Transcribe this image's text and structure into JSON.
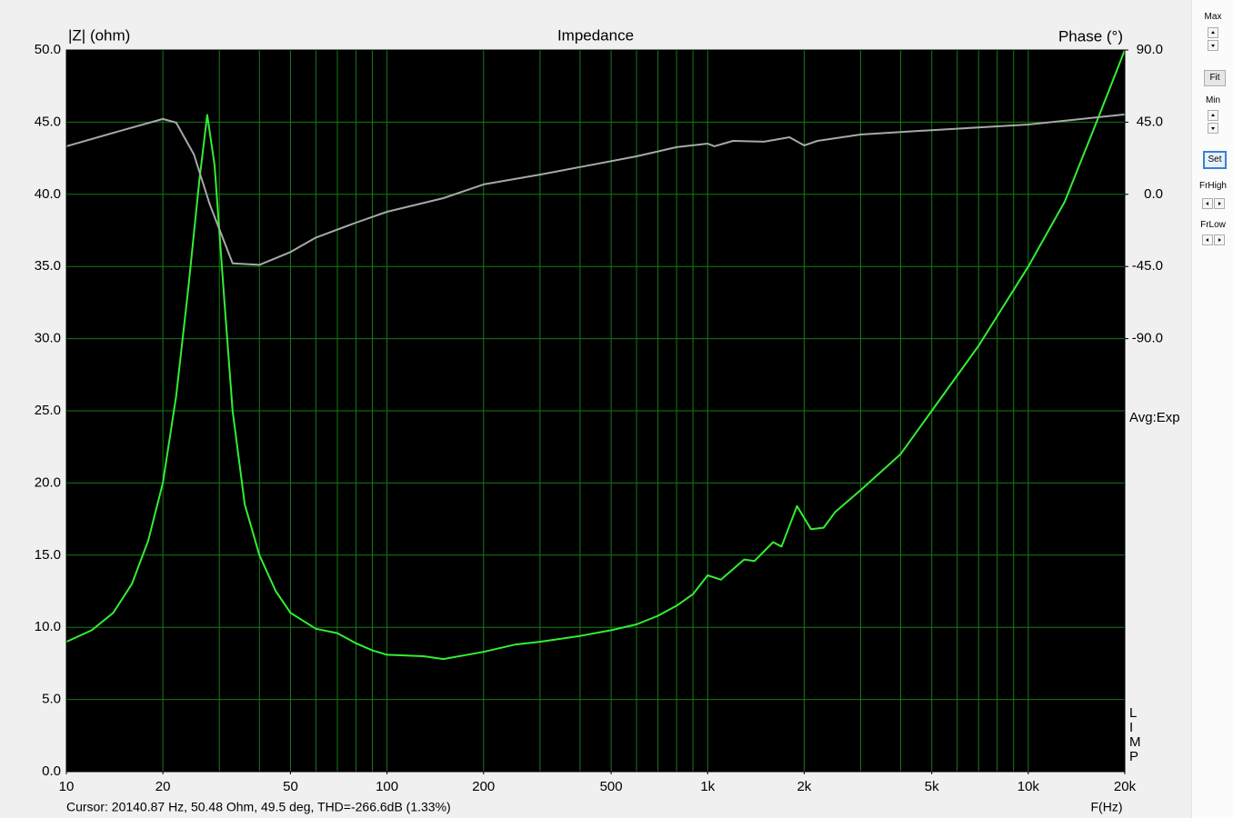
{
  "chart_data": {
    "type": "line",
    "title": "Impedance",
    "y_label": "|Z| (ohm)",
    "y2_label": "Phase (°)",
    "x_label": "F(Hz)",
    "annotation": "Avg:Exp",
    "side_letters": [
      "L",
      "I",
      "M",
      "P"
    ],
    "log_x": true,
    "grid": true,
    "background": "#000000",
    "grid_color": "#167a16",
    "xlim": [
      10,
      20000
    ],
    "xticks": [
      10,
      20,
      50,
      100,
      200,
      500,
      {
        "value": 1000,
        "label": "1k"
      },
      {
        "value": 2000,
        "label": "2k"
      },
      {
        "value": 5000,
        "label": "5k"
      },
      {
        "value": 10000,
        "label": "10k"
      },
      {
        "value": 20000,
        "label": "20k"
      }
    ],
    "xgrid": [
      10,
      20,
      30,
      40,
      50,
      60,
      70,
      80,
      90,
      100,
      200,
      300,
      400,
      500,
      600,
      700,
      800,
      900,
      1000,
      2000,
      3000,
      4000,
      5000,
      6000,
      7000,
      8000,
      9000,
      10000,
      20000
    ],
    "ylim": [
      0,
      50
    ],
    "yticks": [
      {
        "value": 0,
        "label": "0.0"
      },
      {
        "value": 5,
        "label": "5.0"
      },
      {
        "value": 10,
        "label": "10.0"
      },
      {
        "value": 15,
        "label": "15.0"
      },
      {
        "value": 20,
        "label": "20.0"
      },
      {
        "value": 25,
        "label": "25.0"
      },
      {
        "value": 30,
        "label": "30.0"
      },
      {
        "value": 35,
        "label": "35.0"
      },
      {
        "value": 40,
        "label": "40.0"
      },
      {
        "value": 45,
        "label": "45.0"
      },
      {
        "value": 50,
        "label": "50.0"
      }
    ],
    "y2lim": [
      -360,
      90
    ],
    "y2ticks": [
      {
        "value": -90,
        "label": "-90.0"
      },
      {
        "value": -45,
        "label": "-45.0"
      },
      {
        "value": 0,
        "label": "0.0"
      },
      {
        "value": 45,
        "label": "45.0"
      },
      {
        "value": 90,
        "label": "90.0"
      }
    ],
    "series": [
      {
        "color": "#33ee33",
        "axis": "y",
        "x": [
          10,
          12,
          14,
          16,
          18,
          20,
          22,
          24,
          26,
          27.5,
          29,
          31,
          33,
          36,
          40,
          45,
          50,
          60,
          70,
          80,
          90,
          100,
          130,
          150,
          200,
          250,
          300,
          400,
          500,
          600,
          700,
          800,
          900,
          1000,
          1100,
          1300,
          1400,
          1600,
          1700,
          1900,
          2100,
          2300,
          2500,
          3000,
          4000,
          5000,
          7000,
          10000,
          13000,
          16000,
          20000
        ],
        "values": [
          9.0,
          9.8,
          11.0,
          13.0,
          16.0,
          20.0,
          26.0,
          33.5,
          41.0,
          45.5,
          42.0,
          33.0,
          25.0,
          18.5,
          15.0,
          12.5,
          11.0,
          9.9,
          9.6,
          8.9,
          8.4,
          8.1,
          8.0,
          7.8,
          8.3,
          8.8,
          9.0,
          9.4,
          9.8,
          10.2,
          10.8,
          11.5,
          12.3,
          13.6,
          13.3,
          14.7,
          14.6,
          15.9,
          15.6,
          18.4,
          16.8,
          16.9,
          18.0,
          19.5,
          22.0,
          25.0,
          29.5,
          35.0,
          39.5,
          44.5,
          50.0
        ]
      },
      {
        "color": "#a8a8a8",
        "axis": "y2",
        "x": [
          10,
          15,
          20,
          22,
          25,
          28,
          33,
          40,
          50,
          60,
          80,
          100,
          150,
          200,
          300,
          400,
          600,
          800,
          1000,
          1050,
          1200,
          1500,
          1800,
          2000,
          2200,
          3000,
          5000,
          10000,
          20000
        ],
        "values": [
          30,
          40,
          47,
          44.7,
          24.8,
          -6.3,
          -43,
          -44,
          -36,
          -27,
          -17.7,
          -10.9,
          -2.4,
          6.2,
          12.3,
          17,
          23.7,
          29.4,
          31.6,
          30,
          33.3,
          32.8,
          35.6,
          30.5,
          33.3,
          37.3,
          40,
          43.5,
          49.8
        ]
      }
    ]
  },
  "status": {
    "cursor": "Cursor: 20140.87 Hz, 50.48 Ohm, 49.5 deg, THD=-266.6dB (1.33%)"
  },
  "controls": {
    "max": "Max",
    "fit": "Fit",
    "min": "Min",
    "set": "Set",
    "fr_high": "FrHigh",
    "fr_low": "FrLow"
  }
}
